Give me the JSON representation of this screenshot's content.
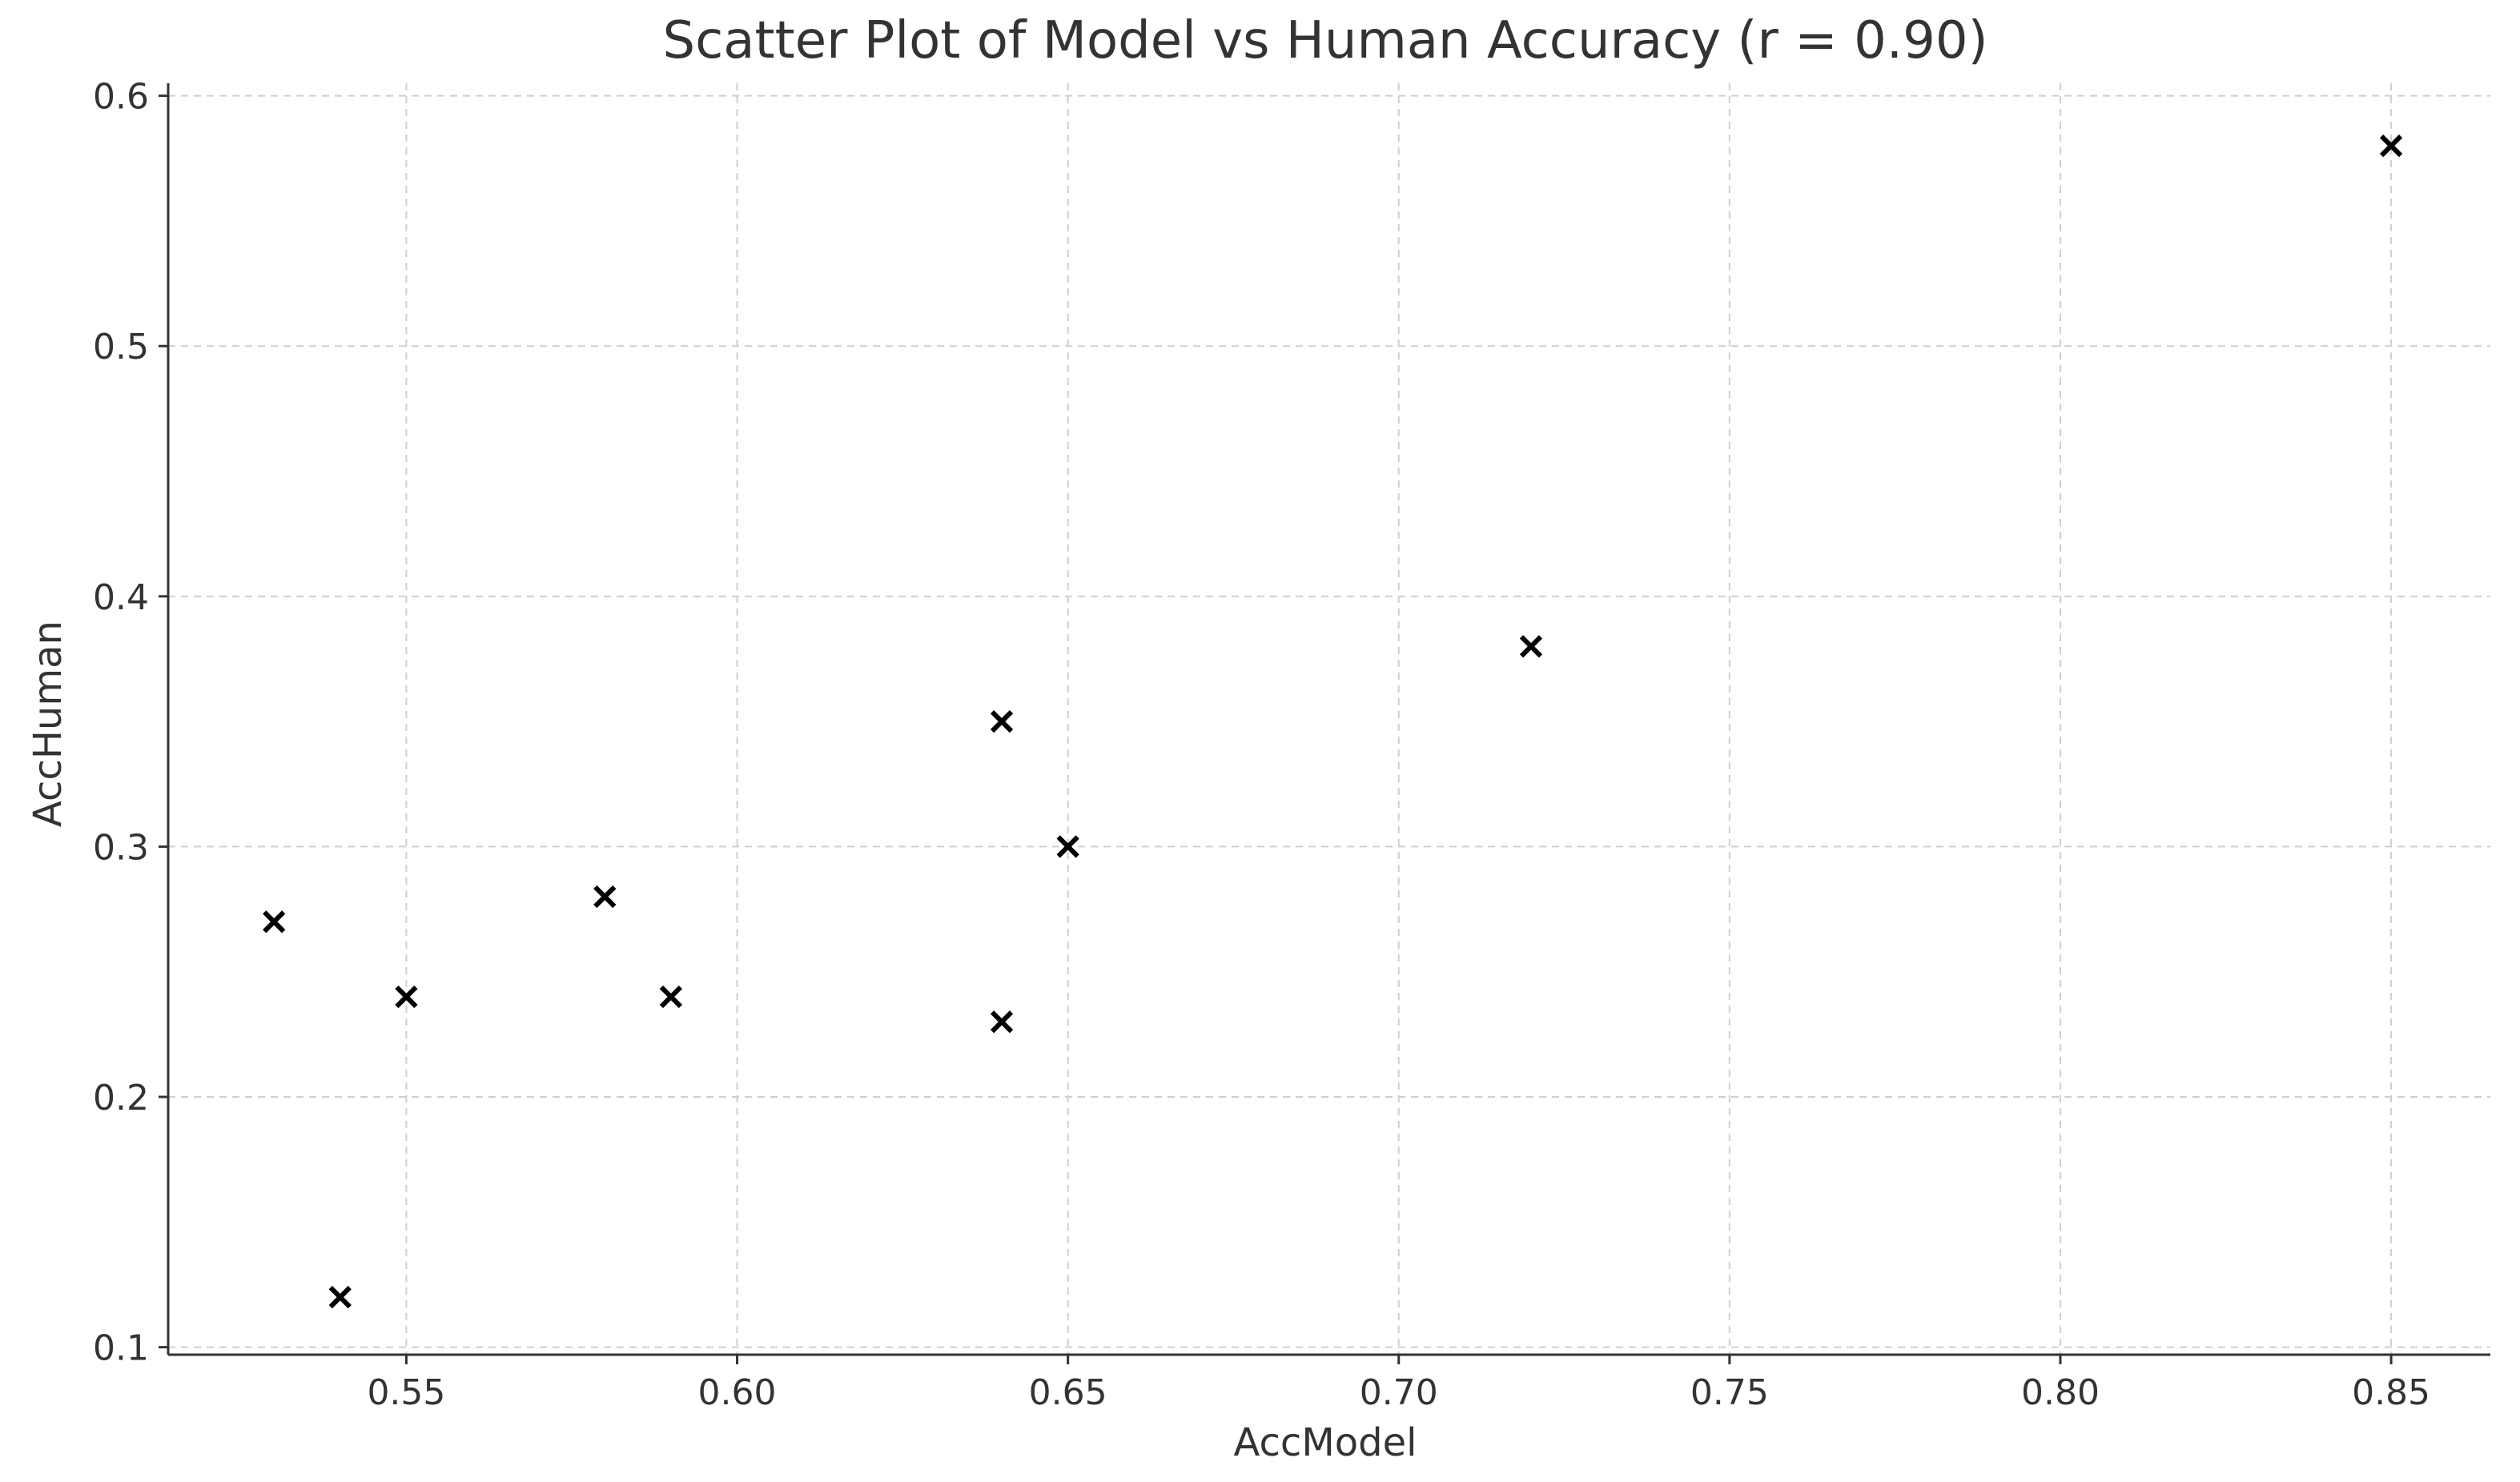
{
  "chart_data": {
    "type": "scatter",
    "title": "Scatter Plot of Model vs Human Accuracy (r = 0.90)",
    "xlabel": "AccModel",
    "ylabel": "AccHuman",
    "xlim": [
      0.514,
      0.865
    ],
    "ylim": [
      0.097,
      0.605
    ],
    "xticks": [
      0.55,
      0.6,
      0.65,
      0.7,
      0.75,
      0.8,
      0.85
    ],
    "xtick_labels": [
      "0.55",
      "0.60",
      "0.65",
      "0.70",
      "0.75",
      "0.80",
      "0.85"
    ],
    "yticks": [
      0.1,
      0.2,
      0.3,
      0.4,
      0.5,
      0.6
    ],
    "ytick_labels": [
      "0.1",
      "0.2",
      "0.3",
      "0.4",
      "0.5",
      "0.6"
    ],
    "grid": true,
    "marker": "x",
    "marker_color": "#000000",
    "series": [
      {
        "points": [
          {
            "x": 0.53,
            "y": 0.27
          },
          {
            "x": 0.54,
            "y": 0.12
          },
          {
            "x": 0.55,
            "y": 0.24
          },
          {
            "x": 0.58,
            "y": 0.28
          },
          {
            "x": 0.59,
            "y": 0.24
          },
          {
            "x": 0.64,
            "y": 0.35
          },
          {
            "x": 0.64,
            "y": 0.23
          },
          {
            "x": 0.65,
            "y": 0.3
          },
          {
            "x": 0.72,
            "y": 0.38
          },
          {
            "x": 0.85,
            "y": 0.58
          }
        ]
      }
    ]
  }
}
